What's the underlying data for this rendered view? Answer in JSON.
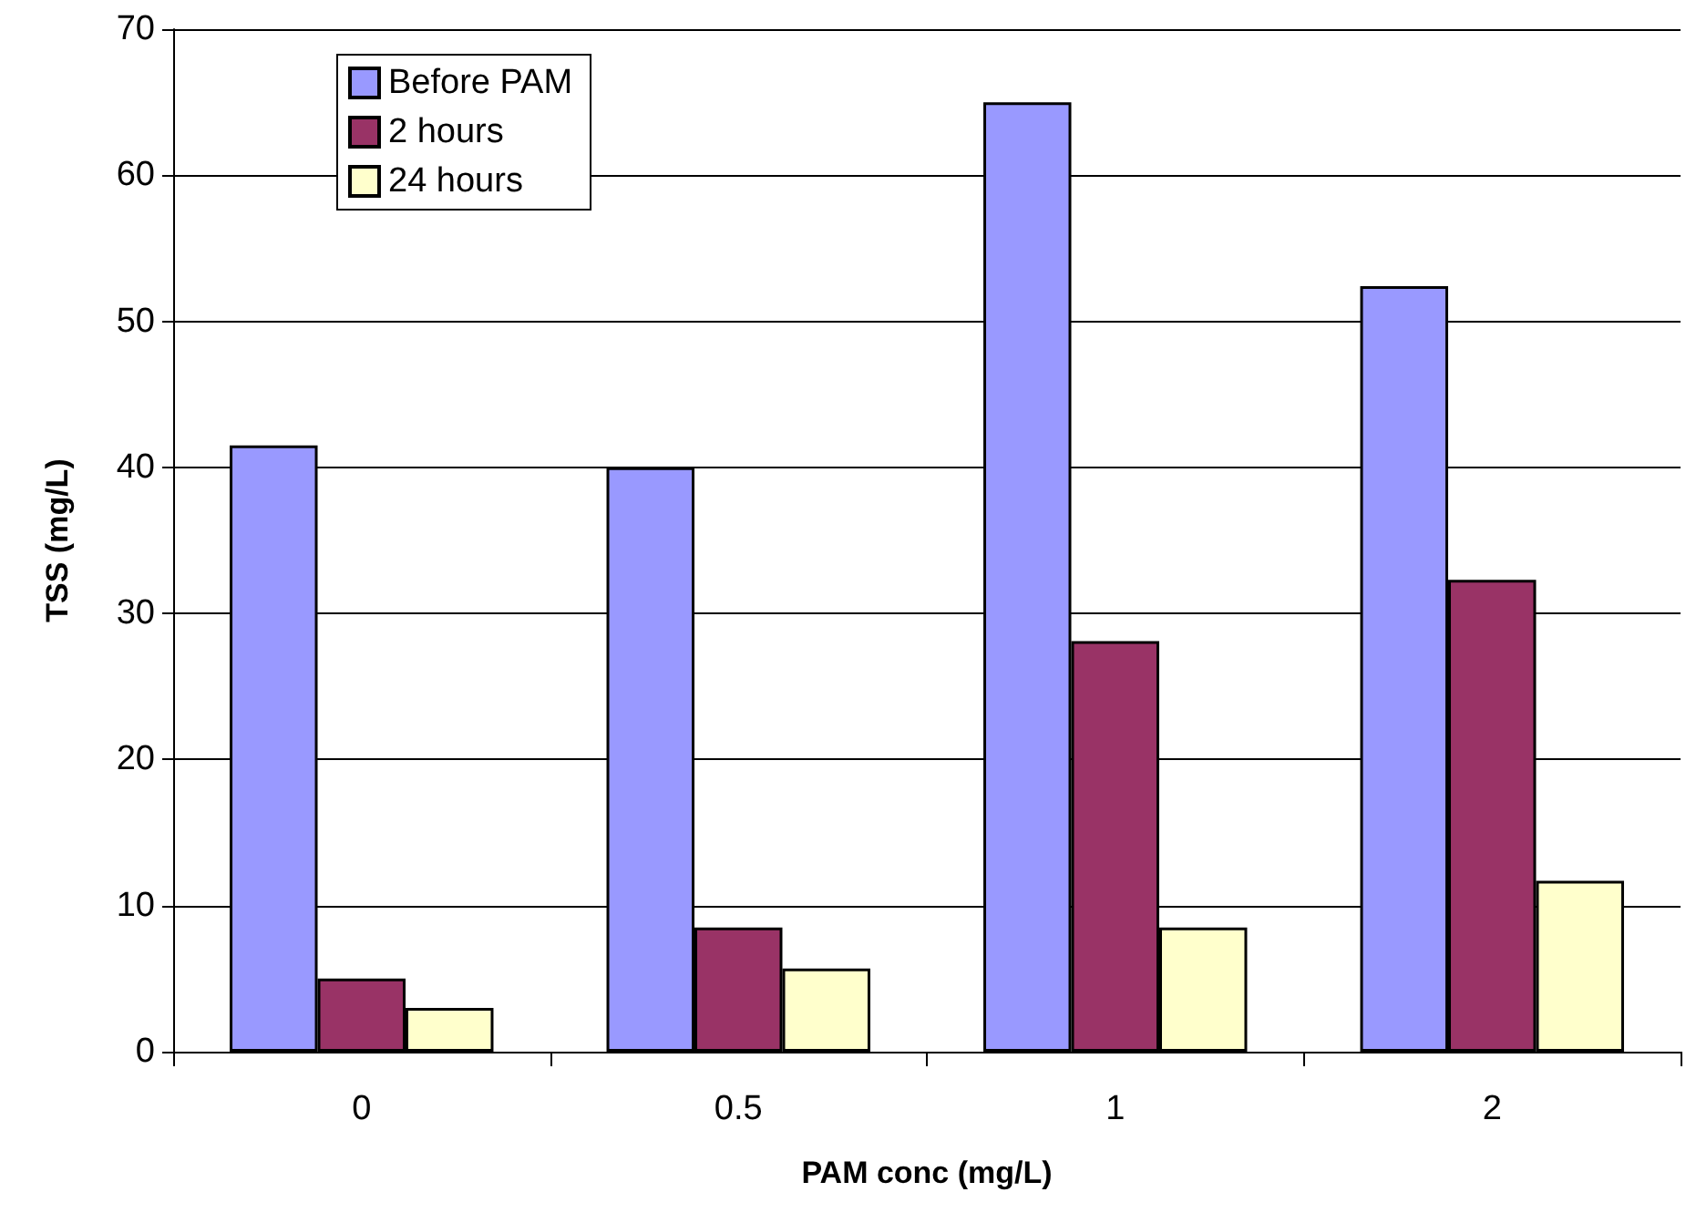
{
  "chart_data": {
    "type": "bar",
    "xlabel": "PAM conc (mg/L)",
    "ylabel": "TSS (mg/L)",
    "categories": [
      "0",
      "0.5",
      "1",
      "2"
    ],
    "series": [
      {
        "name": "Before PAM",
        "color": "#9999ff",
        "values": [
          41.5,
          40,
          65,
          52.4
        ]
      },
      {
        "name": "2 hours",
        "color": "#993366",
        "values": [
          5,
          8.5,
          28.1,
          32.3
        ]
      },
      {
        "name": "24 hours",
        "color": "#ffffcc",
        "values": [
          3,
          5.7,
          8.5,
          11.7
        ]
      }
    ],
    "ylim": [
      0,
      70
    ],
    "yticks": [
      0,
      10,
      20,
      30,
      40,
      50,
      60,
      70
    ],
    "grid": "y",
    "legend": "top left"
  }
}
